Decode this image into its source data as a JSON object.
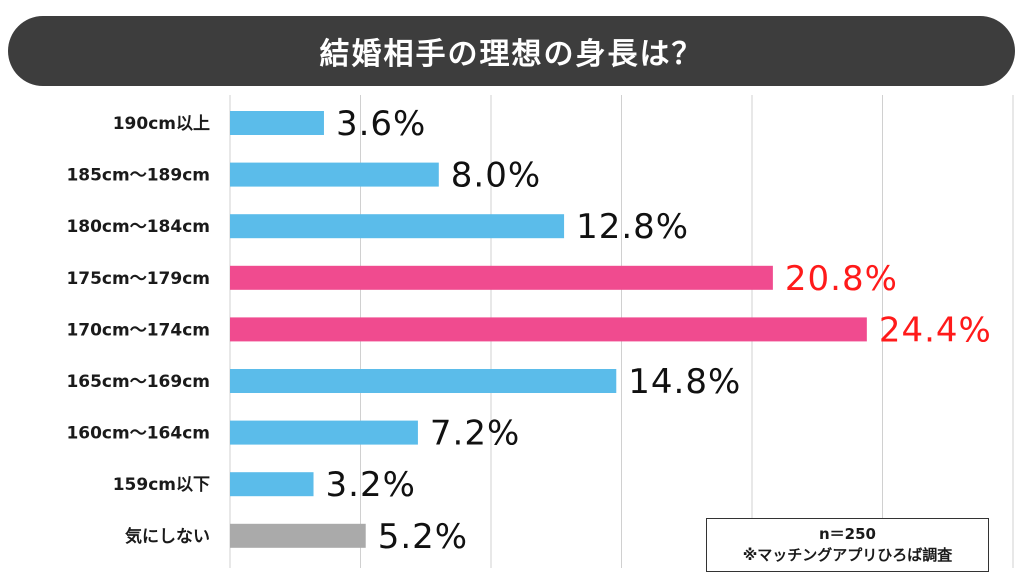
{
  "title": "結婚相手の理想の身長は？",
  "note": {
    "sample": "n＝250",
    "source": "※マッチングアプリひろば調査"
  },
  "colors": {
    "title_bg": "#3d3d3d",
    "blue_bar": "#5bbcea",
    "pink_bar": "#f04b8f",
    "gray_bar": "#aaaaaa",
    "highlight_text": "#ff1a1a",
    "normal_text": "#111111",
    "grid": "#d0d0d0"
  },
  "chart_data": {
    "type": "bar",
    "orientation": "horizontal",
    "title": "結婚相手の理想の身長は？",
    "xlim": [
      0,
      30
    ],
    "grid": true,
    "categories": [
      "190cm以上",
      "185cm～189cm",
      "180cm～184cm",
      "175cm～179cm",
      "170cm～174cm",
      "165cm～169cm",
      "160cm～164cm",
      "159cm以下",
      "気にしない"
    ],
    "values": [
      3.6,
      8.0,
      12.8,
      20.8,
      24.4,
      14.8,
      7.2,
      3.2,
      5.2
    ],
    "value_labels": [
      "3.6%",
      "8.0%",
      "12.8%",
      "20.8%",
      "24.4%",
      "14.8%",
      "7.2%",
      "3.2%",
      "5.2%"
    ],
    "bar_colors": [
      "blue",
      "blue",
      "blue",
      "pink",
      "pink",
      "blue",
      "blue",
      "blue",
      "gray"
    ],
    "highlighted": [
      false,
      false,
      false,
      true,
      true,
      false,
      false,
      false,
      false
    ]
  }
}
